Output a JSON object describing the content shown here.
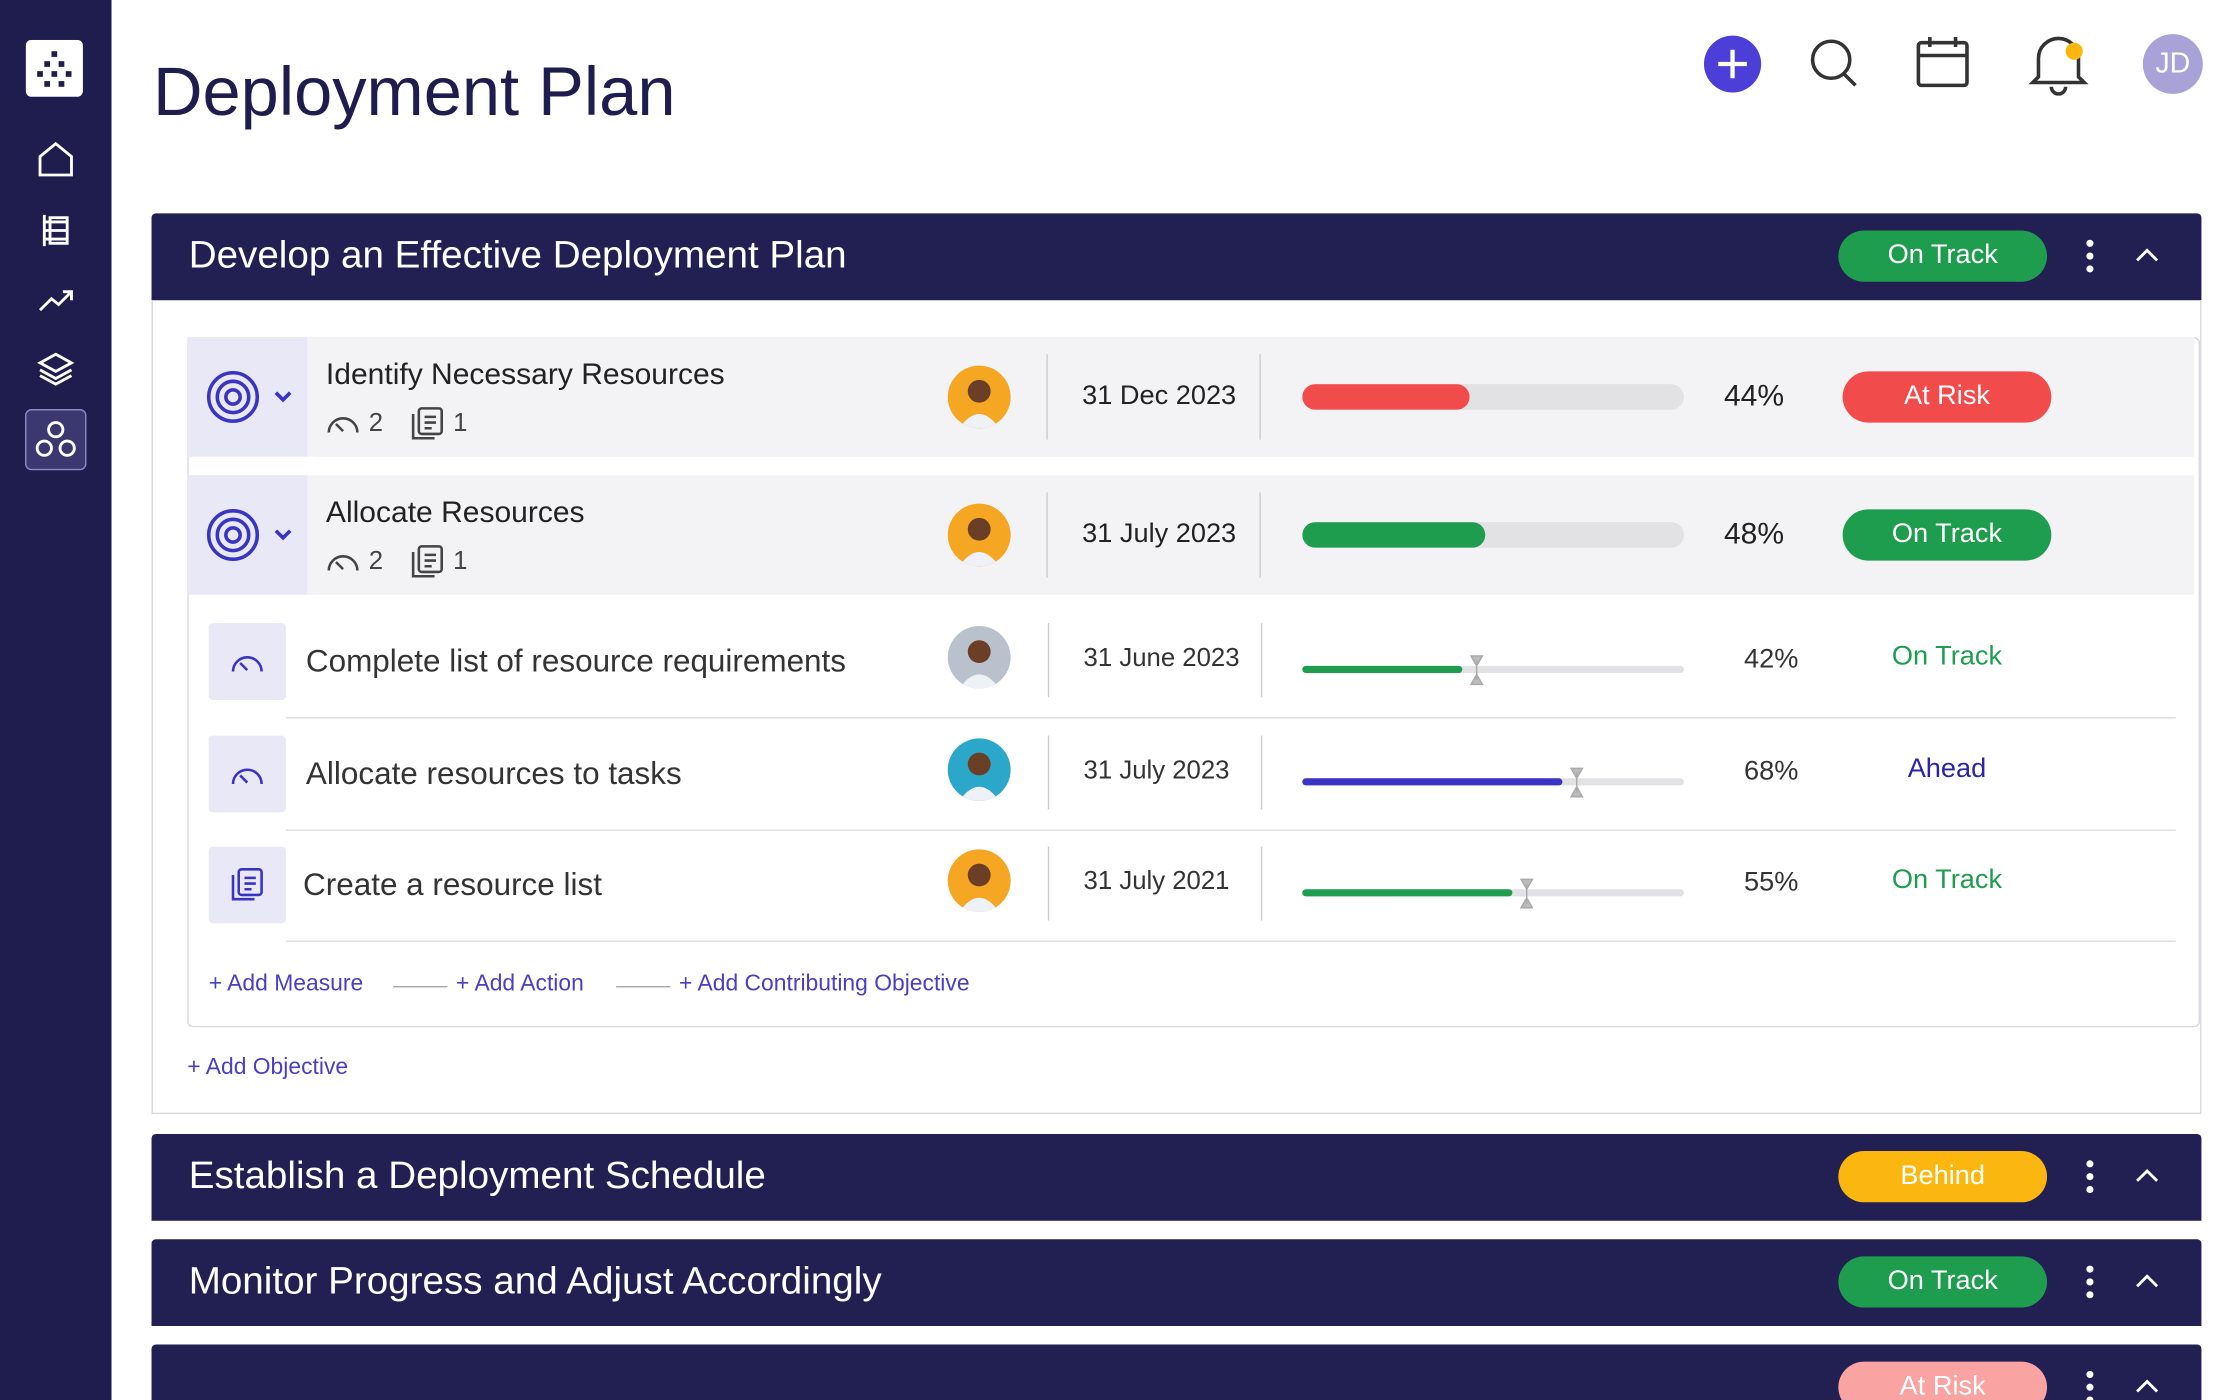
{
  "header": {
    "title": "Deployment Plan",
    "avatar": "JD"
  },
  "sections": [
    {
      "title": "Develop an Effective Deployment Plan",
      "status": "On Track",
      "status_color": "#1f9d4f",
      "objectives": [
        {
          "title": "Identify Necessary Resources",
          "measures": 2,
          "actions": 1,
          "date": "31 Dec 2023",
          "progress": {
            "value": 44,
            "label": "44%"
          },
          "bar_color": "#f24b4b",
          "status": "At Risk",
          "status_color": "#f24b4b",
          "avatar_color": "#f5a623"
        },
        {
          "title": "Allocate Resources",
          "measures": 2,
          "actions": 1,
          "date": "31 July 2023",
          "progress": {
            "value": 48,
            "label": "48%"
          },
          "bar_color": "#1f9d4f",
          "status": "On Track",
          "status_color": "#1f9d4f",
          "avatar_color": "#f5a623"
        }
      ],
      "items": [
        {
          "title": "Complete list of resource requirements",
          "date": "31 June 2023",
          "progress": {
            "value": 42,
            "label": "42%"
          },
          "bar_color": "#1f9d4f",
          "status": "On Track",
          "status_color": "#1f9d4f",
          "avatar_color": "#b9c2cc"
        },
        {
          "title": "Allocate resources to tasks",
          "date": "31 July 2023",
          "progress": {
            "value": 68,
            "label": "68%"
          },
          "bar_color": "#3a34c4",
          "status": "Ahead",
          "status_color": "#2a25a8",
          "avatar_color": "#2aa7c9"
        },
        {
          "title": "Create a resource list",
          "date": "31 July 2021",
          "progress": {
            "value": 55,
            "label": "55%"
          },
          "bar_color": "#1f9d4f",
          "status": "On Track",
          "status_color": "#1f9d4f",
          "avatar_color": "#f5a623"
        }
      ],
      "links": [
        "+ Add Measure",
        "+ Add Action",
        "+ Add Contributing Objective"
      ],
      "add_objective": "+ Add Objective"
    },
    {
      "title": "Establish a Deployment Schedule",
      "status": "Behind",
      "status_color": "#fbb70f"
    },
    {
      "title": "Monitor Progress and Adjust Accordingly",
      "status": "On Track",
      "status_color": "#1f9d4f"
    },
    {
      "status": "At Risk",
      "status_color": "#f9a3a3"
    }
  ]
}
